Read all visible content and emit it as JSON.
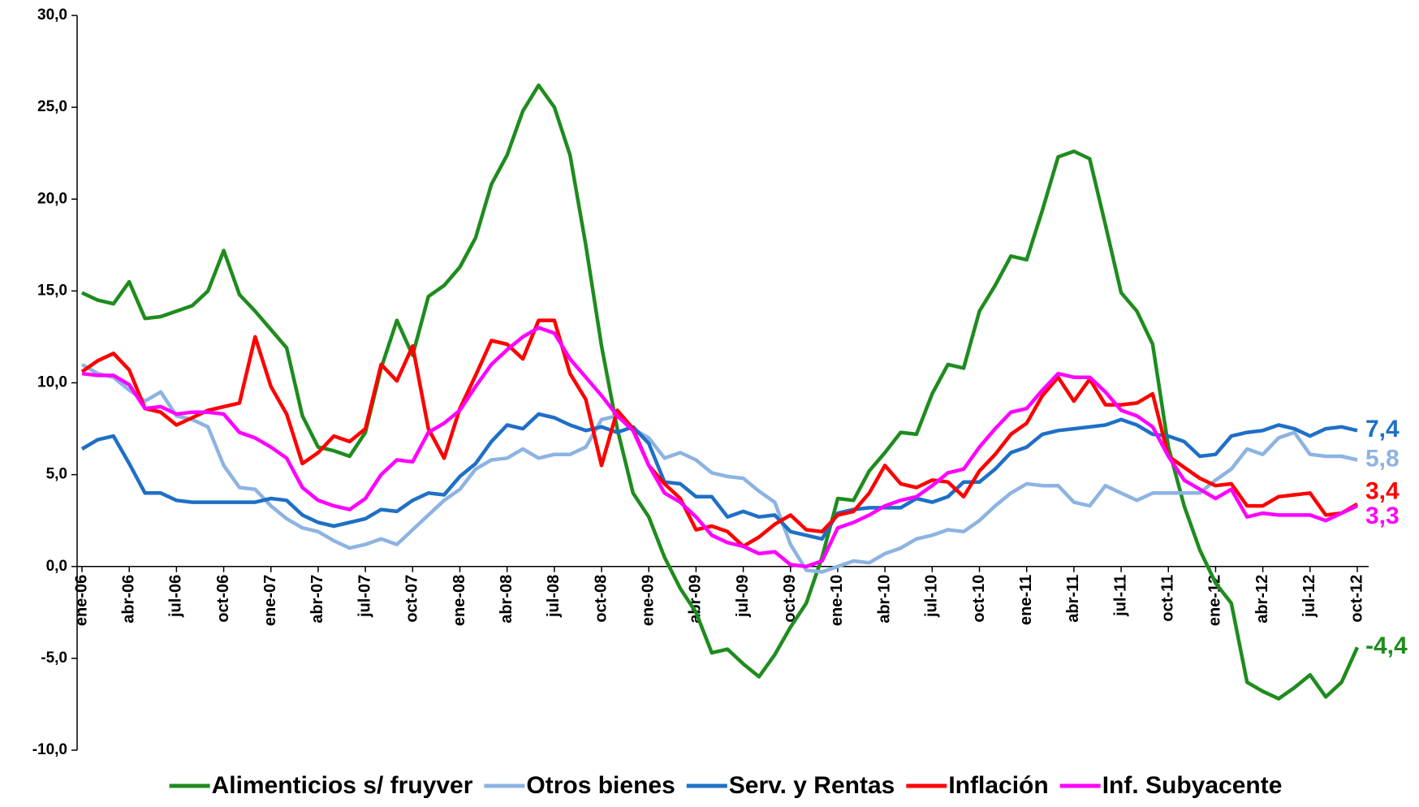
{
  "chart_data": {
    "type": "line",
    "categories": [
      "ene-06",
      null,
      null,
      "abr-06",
      null,
      null,
      "jul-06",
      null,
      null,
      "oct-06",
      null,
      null,
      "ene-07",
      null,
      null,
      "abr-07",
      null,
      null,
      "jul-07",
      null,
      null,
      "oct-07",
      null,
      null,
      "ene-08",
      null,
      null,
      "abr-08",
      null,
      null,
      "jul-08",
      null,
      null,
      "oct-08",
      null,
      null,
      "ene-09",
      null,
      null,
      "abr-09",
      null,
      null,
      "jul-09",
      null,
      null,
      "oct-09",
      null,
      null,
      "ene-10",
      null,
      null,
      "abr-10",
      null,
      null,
      "jul-10",
      null,
      null,
      "oct-10",
      null,
      null,
      "ene-11",
      null,
      null,
      "abr-11",
      null,
      null,
      "jul-11",
      null,
      null,
      "oct-11",
      null,
      null,
      "ene-12",
      null,
      null,
      "abr-12",
      null,
      null,
      "jul-12",
      null,
      null,
      "oct-12"
    ],
    "series": [
      {
        "name": "Alimenticios s/ fruyver",
        "color": "#1e8c1e",
        "values": [
          14.9,
          14.5,
          14.3,
          15.5,
          13.5,
          13.6,
          13.9,
          14.2,
          15.0,
          17.2,
          14.8,
          13.9,
          12.9,
          11.9,
          8.2,
          6.5,
          6.3,
          6.0,
          7.3,
          10.8,
          13.4,
          11.5,
          14.7,
          15.3,
          16.3,
          17.9,
          20.8,
          22.4,
          24.8,
          26.2,
          25.0,
          22.4,
          17.5,
          12.0,
          7.5,
          4.0,
          2.7,
          0.5,
          -1.2,
          -2.5,
          -4.7,
          -4.5,
          -5.3,
          -6.0,
          -4.8,
          -3.3,
          -2.0,
          0.5,
          3.7,
          3.6,
          5.2,
          6.2,
          7.3,
          7.2,
          9.4,
          11.0,
          10.8,
          13.9,
          15.3,
          16.9,
          16.7,
          19.4,
          22.3,
          22.6,
          22.2,
          18.6,
          14.9,
          13.9,
          12.1,
          6.5,
          3.3,
          0.9,
          -0.9,
          -2.0,
          -6.3,
          -6.8,
          -7.2,
          -6.6,
          -5.9,
          -7.1,
          -6.3,
          -4.4
        ],
        "value_labels": [
          null,
          null,
          null,
          null,
          null,
          null,
          null,
          null,
          null,
          null,
          null,
          null,
          null,
          null,
          null,
          null,
          null,
          null,
          null,
          null,
          null,
          null,
          null,
          null,
          null,
          null,
          null,
          null,
          null,
          null,
          null,
          null,
          null,
          null,
          null,
          null,
          null,
          null,
          null,
          null,
          null,
          null,
          null,
          null,
          null,
          null,
          null,
          null,
          null,
          null,
          null,
          null,
          null,
          null,
          null,
          null,
          null,
          null,
          null,
          null,
          null,
          null,
          null,
          null,
          null,
          null,
          null,
          null,
          null,
          null,
          null,
          null,
          null,
          null,
          null,
          null,
          null,
          null,
          null,
          null,
          null,
          "-4,4"
        ]
      },
      {
        "name": "Otros bienes",
        "color": "#8db3e2",
        "values": [
          11.0,
          10.5,
          10.3,
          9.6,
          9.0,
          9.5,
          8.2,
          8.0,
          7.6,
          5.5,
          4.3,
          4.2,
          3.3,
          2.6,
          2.1,
          1.9,
          1.4,
          1.0,
          1.2,
          1.5,
          1.2,
          2.0,
          2.8,
          3.6,
          4.2,
          5.3,
          5.8,
          5.9,
          6.4,
          5.9,
          6.1,
          6.1,
          6.5,
          8.0,
          8.2,
          7.5,
          7.0,
          5.9,
          6.2,
          5.8,
          5.1,
          4.9,
          4.8,
          4.1,
          3.5,
          1.2,
          -0.2,
          -0.3,
          0.0,
          0.3,
          0.2,
          0.7,
          1.0,
          1.5,
          1.7,
          2.0,
          1.9,
          2.5,
          3.3,
          4.0,
          4.5,
          4.4,
          4.4,
          3.5,
          3.3,
          4.4,
          4.0,
          3.6,
          4.0,
          4.0,
          4.0,
          4.0,
          4.7,
          5.3,
          6.4,
          6.1,
          7.0,
          7.3,
          6.1,
          6.0,
          6.0,
          5.8
        ],
        "value_labels": [
          null,
          null,
          null,
          null,
          null,
          null,
          null,
          null,
          null,
          null,
          null,
          null,
          null,
          null,
          null,
          null,
          null,
          null,
          null,
          null,
          null,
          null,
          null,
          null,
          null,
          null,
          null,
          null,
          null,
          null,
          null,
          null,
          null,
          null,
          null,
          null,
          null,
          null,
          null,
          null,
          null,
          null,
          null,
          null,
          null,
          null,
          null,
          null,
          null,
          null,
          null,
          null,
          null,
          null,
          null,
          null,
          null,
          null,
          null,
          null,
          null,
          null,
          null,
          null,
          null,
          null,
          null,
          null,
          null,
          null,
          null,
          null,
          null,
          null,
          null,
          null,
          null,
          null,
          null,
          null,
          null,
          "5,8"
        ]
      },
      {
        "name": "Serv. y Rentas",
        "color": "#1f6fc6",
        "values": [
          6.4,
          6.9,
          7.1,
          5.6,
          4.0,
          4.0,
          3.6,
          3.5,
          3.5,
          3.5,
          3.5,
          3.5,
          3.7,
          3.6,
          2.8,
          2.4,
          2.2,
          2.4,
          2.6,
          3.1,
          3.0,
          3.6,
          4.0,
          3.9,
          4.9,
          5.6,
          6.8,
          7.7,
          7.5,
          8.3,
          8.1,
          7.7,
          7.4,
          7.6,
          7.3,
          7.6,
          6.7,
          4.6,
          4.5,
          3.8,
          3.8,
          2.7,
          3.0,
          2.7,
          2.8,
          1.9,
          1.7,
          1.5,
          2.9,
          3.1,
          3.2,
          3.2,
          3.2,
          3.7,
          3.5,
          3.8,
          4.6,
          4.6,
          5.3,
          6.2,
          6.5,
          7.2,
          7.4,
          7.5,
          7.6,
          7.7,
          8.0,
          7.7,
          7.2,
          7.1,
          6.8,
          6.0,
          6.1,
          7.1,
          7.3,
          7.4,
          7.7,
          7.5,
          7.1,
          7.5,
          7.6,
          7.4
        ],
        "value_labels": [
          null,
          null,
          null,
          null,
          null,
          null,
          null,
          null,
          null,
          null,
          null,
          null,
          null,
          null,
          null,
          null,
          null,
          null,
          null,
          null,
          null,
          null,
          null,
          null,
          null,
          null,
          null,
          null,
          null,
          null,
          null,
          null,
          null,
          null,
          null,
          null,
          null,
          null,
          null,
          null,
          null,
          null,
          null,
          null,
          null,
          null,
          null,
          null,
          null,
          null,
          null,
          null,
          null,
          null,
          null,
          null,
          null,
          null,
          null,
          null,
          null,
          null,
          null,
          null,
          null,
          null,
          null,
          null,
          null,
          null,
          null,
          null,
          null,
          null,
          null,
          null,
          null,
          null,
          null,
          null,
          null,
          "7,4"
        ]
      },
      {
        "name": "Inflación",
        "color": "#ff0000",
        "values": [
          10.6,
          11.2,
          11.6,
          10.7,
          8.6,
          8.4,
          7.7,
          8.1,
          8.5,
          8.7,
          8.9,
          12.5,
          9.8,
          8.3,
          5.6,
          6.2,
          7.1,
          6.8,
          7.5,
          11.0,
          10.1,
          12.0,
          7.5,
          5.9,
          8.6,
          10.4,
          12.3,
          12.1,
          11.3,
          13.4,
          13.4,
          10.5,
          9.1,
          5.5,
          8.5,
          7.5,
          5.5,
          4.5,
          3.7,
          2.0,
          2.2,
          1.9,
          1.1,
          1.6,
          2.3,
          2.8,
          2.0,
          1.9,
          2.8,
          3.0,
          4.0,
          5.5,
          4.5,
          4.3,
          4.7,
          4.6,
          3.8,
          5.2,
          6.1,
          7.2,
          7.8,
          9.3,
          10.3,
          9.0,
          10.2,
          8.8,
          8.8,
          8.9,
          9.4,
          6.0,
          5.4,
          4.8,
          4.4,
          4.5,
          3.3,
          3.3,
          3.8,
          3.9,
          4.0,
          2.8,
          2.9,
          3.4
        ],
        "value_labels": [
          null,
          null,
          null,
          null,
          null,
          null,
          null,
          null,
          null,
          null,
          null,
          null,
          null,
          null,
          null,
          null,
          null,
          null,
          null,
          null,
          null,
          null,
          null,
          null,
          null,
          null,
          null,
          null,
          null,
          null,
          null,
          null,
          null,
          null,
          null,
          null,
          null,
          null,
          null,
          null,
          null,
          null,
          null,
          null,
          null,
          null,
          null,
          null,
          null,
          null,
          null,
          null,
          null,
          null,
          null,
          null,
          null,
          null,
          null,
          null,
          null,
          null,
          null,
          null,
          null,
          null,
          null,
          null,
          null,
          null,
          null,
          null,
          null,
          null,
          null,
          null,
          null,
          null,
          null,
          null,
          null,
          "3,4"
        ]
      },
      {
        "name": "Inf. Subyacente",
        "color": "#ff00ff",
        "values": [
          10.5,
          10.4,
          10.4,
          9.9,
          8.6,
          8.7,
          8.3,
          8.4,
          8.4,
          8.3,
          7.3,
          7.0,
          6.5,
          5.9,
          4.3,
          3.6,
          3.3,
          3.1,
          3.7,
          5.0,
          5.8,
          5.7,
          7.3,
          7.8,
          8.5,
          9.8,
          11.0,
          11.8,
          12.5,
          13.0,
          12.7,
          11.3,
          10.3,
          9.3,
          8.2,
          7.4,
          5.5,
          4.0,
          3.5,
          2.7,
          1.7,
          1.3,
          1.1,
          0.7,
          0.8,
          0.1,
          0.0,
          0.3,
          2.1,
          2.4,
          2.8,
          3.3,
          3.6,
          3.8,
          4.4,
          5.1,
          5.3,
          6.5,
          7.5,
          8.4,
          8.6,
          9.6,
          10.5,
          10.3,
          10.3,
          9.5,
          8.5,
          8.2,
          7.6,
          6.0,
          4.7,
          4.2,
          3.7,
          4.2,
          2.7,
          2.9,
          2.8,
          2.8,
          2.8,
          2.5,
          2.9,
          3.3
        ],
        "value_labels": [
          null,
          null,
          null,
          null,
          null,
          null,
          null,
          null,
          null,
          null,
          null,
          null,
          null,
          null,
          null,
          null,
          null,
          null,
          null,
          null,
          null,
          null,
          null,
          null,
          null,
          null,
          null,
          null,
          null,
          null,
          null,
          null,
          null,
          null,
          null,
          null,
          null,
          null,
          null,
          null,
          null,
          null,
          null,
          null,
          null,
          null,
          null,
          null,
          null,
          null,
          null,
          null,
          null,
          null,
          null,
          null,
          null,
          null,
          null,
          null,
          null,
          null,
          null,
          null,
          null,
          null,
          null,
          null,
          null,
          null,
          null,
          null,
          null,
          null,
          null,
          null,
          null,
          null,
          null,
          null,
          null,
          "3,3"
        ]
      }
    ],
    "ylim": [
      -10,
      30
    ],
    "yticks": [
      {
        "value": -10,
        "label": "-10,0"
      },
      {
        "value": -5,
        "label": "-5,0"
      },
      {
        "value": 0,
        "label": "0,0"
      },
      {
        "value": 5,
        "label": "5,0"
      },
      {
        "value": 10,
        "label": "10,0"
      },
      {
        "value": 15,
        "label": "15,0"
      },
      {
        "value": 20,
        "label": "20,0"
      },
      {
        "value": 25,
        "label": "25,0"
      },
      {
        "value": 30,
        "label": "30,0"
      }
    ],
    "grid": false,
    "legend": "bottom"
  }
}
